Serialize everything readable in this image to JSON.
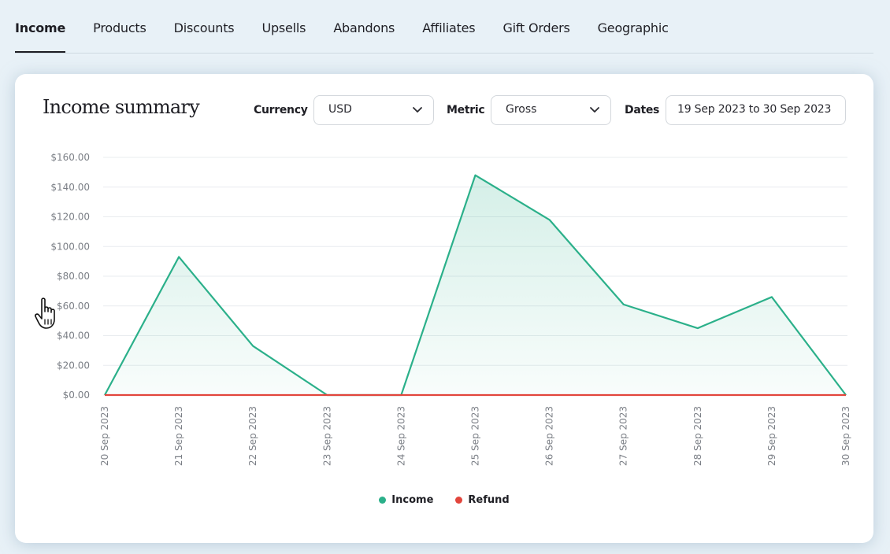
{
  "tabs": [
    {
      "label": "Income",
      "active": true
    },
    {
      "label": "Products",
      "active": false
    },
    {
      "label": "Discounts",
      "active": false
    },
    {
      "label": "Upsells",
      "active": false
    },
    {
      "label": "Abandons",
      "active": false
    },
    {
      "label": "Affiliates",
      "active": false
    },
    {
      "label": "Gift Orders",
      "active": false
    },
    {
      "label": "Geographic",
      "active": false
    }
  ],
  "summary": {
    "title": "Income summary",
    "currency_label": "Currency",
    "currency_value": "USD",
    "metric_label": "Metric",
    "metric_value": "Gross",
    "dates_label": "Dates",
    "dates_value": "19 Sep 2023 to 30 Sep 2023"
  },
  "colors": {
    "income": "#2bb08a",
    "refund": "#e2453c",
    "grid": "#e9ecef",
    "tick_text": "#7b7f86"
  },
  "chart_data": {
    "type": "area",
    "x": [
      "20 Sep 2023",
      "21 Sep 2023",
      "22 Sep 2023",
      "23 Sep 2023",
      "24 Sep 2023",
      "25 Sep 2023",
      "26 Sep 2023",
      "27 Sep 2023",
      "28 Sep 2023",
      "29 Sep 2023",
      "30 Sep 2023"
    ],
    "yticks": [
      "$0.00",
      "$20.00",
      "$40.00",
      "$60.00",
      "$80.00",
      "$100.00",
      "$120.00",
      "$140.00",
      "$160.00"
    ],
    "ylim": [
      0,
      160
    ],
    "grid": true,
    "legend_position": "bottom-center",
    "series": [
      {
        "name": "Income",
        "values": [
          0,
          93,
          33,
          0,
          0,
          148,
          118,
          61,
          45,
          66,
          0
        ]
      },
      {
        "name": "Refund",
        "values": [
          0,
          0,
          0,
          0,
          0,
          0,
          0,
          0,
          0,
          0,
          0
        ]
      }
    ]
  }
}
